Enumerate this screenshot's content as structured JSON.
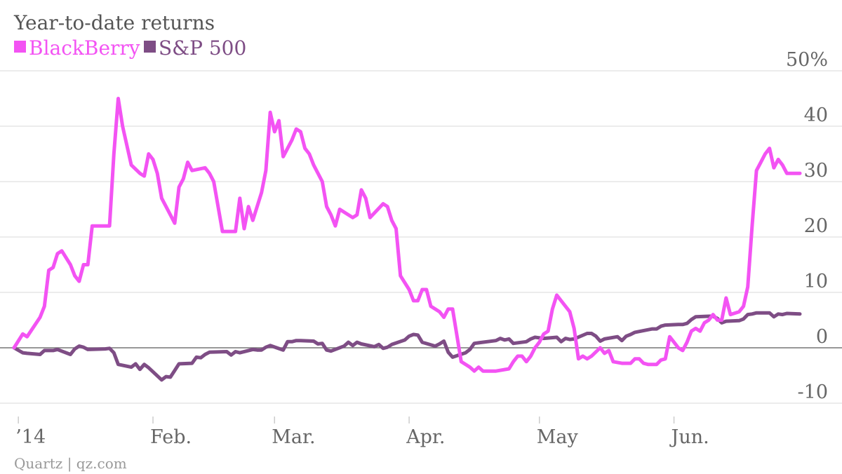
{
  "chart_data": {
    "type": "line",
    "title": "Year-to-date returns",
    "source": "Quartz | qz.com",
    "legend_position": "top-left",
    "grid": true,
    "ylim": [
      -10,
      50
    ],
    "y_ticks": [
      {
        "value": 50,
        "label": "50%"
      },
      {
        "value": 40,
        "label": "40"
      },
      {
        "value": 30,
        "label": "30"
      },
      {
        "value": 20,
        "label": "20"
      },
      {
        "value": 10,
        "label": "10"
      },
      {
        "value": 0,
        "label": "0"
      },
      {
        "value": -10,
        "label": "-10"
      }
    ],
    "x_domain": [
      "2013-12-31",
      "2014-06-30"
    ],
    "x_ticks": [
      {
        "date": "2014-01-01",
        "label": "’14"
      },
      {
        "date": "2014-02-01",
        "label": "Feb."
      },
      {
        "date": "2014-03-01",
        "label": "Mar."
      },
      {
        "date": "2014-04-01",
        "label": "Apr."
      },
      {
        "date": "2014-05-01",
        "label": "May"
      },
      {
        "date": "2014-06-01",
        "label": "Jun."
      }
    ],
    "series": [
      {
        "name": "BlackBerry",
        "color": "#f353f3",
        "points": [
          [
            "2013-12-31",
            0
          ],
          [
            "2014-01-02",
            2.5
          ],
          [
            "2014-01-03",
            2
          ],
          [
            "2014-01-06",
            5.5
          ],
          [
            "2014-01-07",
            7.5
          ],
          [
            "2014-01-08",
            14
          ],
          [
            "2014-01-09",
            14.5
          ],
          [
            "2014-01-10",
            17
          ],
          [
            "2014-01-11",
            17.5
          ],
          [
            "2014-01-13",
            15
          ],
          [
            "2014-01-14",
            13
          ],
          [
            "2014-01-15",
            12
          ],
          [
            "2014-01-16",
            15
          ],
          [
            "2014-01-17",
            15
          ],
          [
            "2014-01-18",
            22
          ],
          [
            "2014-01-21",
            22
          ],
          [
            "2014-01-22",
            22
          ],
          [
            "2014-01-23",
            35
          ],
          [
            "2014-01-24",
            45
          ],
          [
            "2014-01-25",
            40
          ],
          [
            "2014-01-27",
            33
          ],
          [
            "2014-01-29",
            31.5
          ],
          [
            "2014-01-30",
            31
          ],
          [
            "2014-01-31",
            35
          ],
          [
            "2014-02-01",
            34
          ],
          [
            "2014-02-02",
            31.5
          ],
          [
            "2014-02-03",
            27
          ],
          [
            "2014-02-05",
            24
          ],
          [
            "2014-02-06",
            22.5
          ],
          [
            "2014-02-07",
            29
          ],
          [
            "2014-02-08",
            30.5
          ],
          [
            "2014-02-09",
            33.5
          ],
          [
            "2014-02-10",
            32
          ],
          [
            "2014-02-13",
            32.5
          ],
          [
            "2014-02-14",
            31.5
          ],
          [
            "2014-02-15",
            30
          ],
          [
            "2014-02-17",
            21
          ],
          [
            "2014-02-20",
            21
          ],
          [
            "2014-02-21",
            27
          ],
          [
            "2014-02-22",
            21.5
          ],
          [
            "2014-02-23",
            25.5
          ],
          [
            "2014-02-24",
            23
          ],
          [
            "2014-02-26",
            28
          ],
          [
            "2014-02-27",
            32
          ],
          [
            "2014-02-28",
            42.5
          ],
          [
            "2014-03-01",
            39
          ],
          [
            "2014-03-02",
            41
          ],
          [
            "2014-03-03",
            34.5
          ],
          [
            "2014-03-05",
            37.5
          ],
          [
            "2014-03-06",
            39.5
          ],
          [
            "2014-03-07",
            39
          ],
          [
            "2014-03-08",
            36
          ],
          [
            "2014-03-09",
            35
          ],
          [
            "2014-03-10",
            33
          ],
          [
            "2014-03-12",
            30
          ],
          [
            "2014-03-13",
            25.5
          ],
          [
            "2014-03-14",
            24
          ],
          [
            "2014-03-15",
            22
          ],
          [
            "2014-03-16",
            25
          ],
          [
            "2014-03-19",
            23.5
          ],
          [
            "2014-03-20",
            24
          ],
          [
            "2014-03-21",
            28.5
          ],
          [
            "2014-03-22",
            27
          ],
          [
            "2014-03-23",
            23.5
          ],
          [
            "2014-03-26",
            26
          ],
          [
            "2014-03-27",
            25.5
          ],
          [
            "2014-03-28",
            23
          ],
          [
            "2014-03-29",
            21.5
          ],
          [
            "2014-03-30",
            13
          ],
          [
            "2014-04-01",
            10.5
          ],
          [
            "2014-04-02",
            8.5
          ],
          [
            "2014-04-03",
            8.5
          ],
          [
            "2014-04-04",
            10.5
          ],
          [
            "2014-04-05",
            10.5
          ],
          [
            "2014-04-06",
            7.5
          ],
          [
            "2014-04-08",
            6.5
          ],
          [
            "2014-04-09",
            5.5
          ],
          [
            "2014-04-10",
            7
          ],
          [
            "2014-04-11",
            7
          ],
          [
            "2014-04-13",
            -2.5
          ],
          [
            "2014-04-15",
            -3.5
          ],
          [
            "2014-04-16",
            -4.2
          ],
          [
            "2014-04-17",
            -3.5
          ],
          [
            "2014-04-18",
            -4.2
          ],
          [
            "2014-04-21",
            -4.2
          ],
          [
            "2014-04-24",
            -3.8
          ],
          [
            "2014-04-25",
            -2.5
          ],
          [
            "2014-04-26",
            -1.5
          ],
          [
            "2014-04-27",
            -1.5
          ],
          [
            "2014-04-28",
            -2.5
          ],
          [
            "2014-04-29",
            -1.5
          ],
          [
            "2014-04-30",
            0
          ],
          [
            "2014-05-01",
            1
          ],
          [
            "2014-05-02",
            2.5
          ],
          [
            "2014-05-03",
            3
          ],
          [
            "2014-05-04",
            7
          ],
          [
            "2014-05-05",
            9.5
          ],
          [
            "2014-05-06",
            8.5
          ],
          [
            "2014-05-08",
            6.5
          ],
          [
            "2014-05-09",
            3.5
          ],
          [
            "2014-05-10",
            -2
          ],
          [
            "2014-05-11",
            -1.5
          ],
          [
            "2014-05-12",
            -2
          ],
          [
            "2014-05-13",
            -1.5
          ],
          [
            "2014-05-15",
            0
          ],
          [
            "2014-05-16",
            -1
          ],
          [
            "2014-05-17",
            -0.5
          ],
          [
            "2014-05-18",
            -2.5
          ],
          [
            "2014-05-20",
            -2.8
          ],
          [
            "2014-05-22",
            -2.8
          ],
          [
            "2014-05-23",
            -2
          ],
          [
            "2014-05-24",
            -2
          ],
          [
            "2014-05-25",
            -2.8
          ],
          [
            "2014-05-26",
            -3
          ],
          [
            "2014-05-28",
            -3
          ],
          [
            "2014-05-29",
            -2.2
          ],
          [
            "2014-05-30",
            -2
          ],
          [
            "2014-05-31",
            2
          ],
          [
            "2014-06-01",
            1
          ],
          [
            "2014-06-02",
            0
          ],
          [
            "2014-06-03",
            -0.5
          ],
          [
            "2014-06-04",
            1
          ],
          [
            "2014-06-05",
            3
          ],
          [
            "2014-06-06",
            3.5
          ],
          [
            "2014-06-07",
            3
          ],
          [
            "2014-06-08",
            4.5
          ],
          [
            "2014-06-09",
            5
          ],
          [
            "2014-06-10",
            6
          ],
          [
            "2014-06-11",
            5
          ],
          [
            "2014-06-12",
            5
          ],
          [
            "2014-06-13",
            9
          ],
          [
            "2014-06-14",
            6
          ],
          [
            "2014-06-16",
            6.5
          ],
          [
            "2014-06-17",
            7.5
          ],
          [
            "2014-06-18",
            11
          ],
          [
            "2014-06-19",
            22
          ],
          [
            "2014-06-20",
            32
          ],
          [
            "2014-06-21",
            33.5
          ],
          [
            "2014-06-22",
            35
          ],
          [
            "2014-06-23",
            36
          ],
          [
            "2014-06-24",
            32.5
          ],
          [
            "2014-06-25",
            34
          ],
          [
            "2014-06-26",
            33
          ],
          [
            "2014-06-27",
            31.5
          ],
          [
            "2014-06-30",
            31.5
          ]
        ]
      },
      {
        "name": "S&P 500",
        "color": "#7e4d85",
        "points": [
          [
            "2013-12-31",
            0
          ],
          [
            "2014-01-02",
            -0.9
          ],
          [
            "2014-01-03",
            -1
          ],
          [
            "2014-01-06",
            -1.2
          ],
          [
            "2014-01-07",
            -0.5
          ],
          [
            "2014-01-08",
            -0.5
          ],
          [
            "2014-01-09",
            -0.5
          ],
          [
            "2014-01-10",
            -0.3
          ],
          [
            "2014-01-13",
            -1.2
          ],
          [
            "2014-01-14",
            -0.2
          ],
          [
            "2014-01-15",
            0.3
          ],
          [
            "2014-01-16",
            0.1
          ],
          [
            "2014-01-17",
            -0.3
          ],
          [
            "2014-01-21",
            -0.2
          ],
          [
            "2014-01-22",
            -0.1
          ],
          [
            "2014-01-23",
            -0.9
          ],
          [
            "2014-01-24",
            -3
          ],
          [
            "2014-01-27",
            -3.5
          ],
          [
            "2014-01-28",
            -2.9
          ],
          [
            "2014-01-29",
            -3.9
          ],
          [
            "2014-01-30",
            -3
          ],
          [
            "2014-01-31",
            -3.6
          ],
          [
            "2014-02-03",
            -5.8
          ],
          [
            "2014-02-04",
            -5.2
          ],
          [
            "2014-02-05",
            -5.3
          ],
          [
            "2014-02-06",
            -4.1
          ],
          [
            "2014-02-07",
            -2.9
          ],
          [
            "2014-02-10",
            -2.8
          ],
          [
            "2014-02-11",
            -1.7
          ],
          [
            "2014-02-12",
            -1.8
          ],
          [
            "2014-02-13",
            -1.2
          ],
          [
            "2014-02-14",
            -0.8
          ],
          [
            "2014-02-18",
            -0.7
          ],
          [
            "2014-02-19",
            -1.3
          ],
          [
            "2014-02-20",
            -0.7
          ],
          [
            "2014-02-21",
            -0.9
          ],
          [
            "2014-02-24",
            -0.3
          ],
          [
            "2014-02-25",
            -0.4
          ],
          [
            "2014-02-26",
            -0.4
          ],
          [
            "2014-02-27",
            0.1
          ],
          [
            "2014-02-28",
            0.4
          ],
          [
            "2014-03-03",
            -0.4
          ],
          [
            "2014-03-04",
            1.1
          ],
          [
            "2014-03-05",
            1.1
          ],
          [
            "2014-03-06",
            1.3
          ],
          [
            "2014-03-07",
            1.3
          ],
          [
            "2014-03-10",
            1.2
          ],
          [
            "2014-03-11",
            0.7
          ],
          [
            "2014-03-12",
            0.8
          ],
          [
            "2014-03-13",
            -0.4
          ],
          [
            "2014-03-14",
            -0.6
          ],
          [
            "2014-03-17",
            0.3
          ],
          [
            "2014-03-18",
            1
          ],
          [
            "2014-03-19",
            0.4
          ],
          [
            "2014-03-20",
            1
          ],
          [
            "2014-03-21",
            0.7
          ],
          [
            "2014-03-24",
            0.2
          ],
          [
            "2014-03-25",
            0.6
          ],
          [
            "2014-03-26",
            -0.1
          ],
          [
            "2014-03-27",
            0.1
          ],
          [
            "2014-03-28",
            0.6
          ],
          [
            "2014-03-31",
            1.4
          ],
          [
            "2014-04-01",
            2.1
          ],
          [
            "2014-04-02",
            2.4
          ],
          [
            "2014-04-03",
            2.3
          ],
          [
            "2014-04-04",
            1
          ],
          [
            "2014-04-07",
            0.3
          ],
          [
            "2014-04-08",
            0.7
          ],
          [
            "2014-04-09",
            1.2
          ],
          [
            "2014-04-10",
            -0.8
          ],
          [
            "2014-04-11",
            -1.7
          ],
          [
            "2014-04-14",
            -0.9
          ],
          [
            "2014-04-15",
            -0.3
          ],
          [
            "2014-04-16",
            0.8
          ],
          [
            "2014-04-17",
            0.9
          ],
          [
            "2014-04-21",
            1.3
          ],
          [
            "2014-04-22",
            1.7
          ],
          [
            "2014-04-23",
            1.4
          ],
          [
            "2014-04-24",
            1.6
          ],
          [
            "2014-04-25",
            0.8
          ],
          [
            "2014-04-28",
            1.1
          ],
          [
            "2014-04-29",
            1.6
          ],
          [
            "2014-04-30",
            1.9
          ],
          [
            "2014-05-01",
            1.8
          ],
          [
            "2014-05-02",
            1.7
          ],
          [
            "2014-05-05",
            1.9
          ],
          [
            "2014-05-06",
            1.1
          ],
          [
            "2014-05-07",
            1.7
          ],
          [
            "2014-05-08",
            1.5
          ],
          [
            "2014-05-09",
            1.6
          ],
          [
            "2014-05-12",
            2.6
          ],
          [
            "2014-05-13",
            2.6
          ],
          [
            "2014-05-14",
            2.1
          ],
          [
            "2014-05-15",
            1.2
          ],
          [
            "2014-05-16",
            1.6
          ],
          [
            "2014-05-19",
            2
          ],
          [
            "2014-05-20",
            1.3
          ],
          [
            "2014-05-21",
            2.1
          ],
          [
            "2014-05-22",
            2.4
          ],
          [
            "2014-05-23",
            2.8
          ],
          [
            "2014-05-27",
            3.4
          ],
          [
            "2014-05-28",
            3.4
          ],
          [
            "2014-05-29",
            3.9
          ],
          [
            "2014-05-30",
            4.1
          ],
          [
            "2014-06-02",
            4.2
          ],
          [
            "2014-06-03",
            4.2
          ],
          [
            "2014-06-04",
            4.4
          ],
          [
            "2014-06-05",
            5.1
          ],
          [
            "2014-06-06",
            5.6
          ],
          [
            "2014-06-09",
            5.7
          ],
          [
            "2014-06-10",
            5.7
          ],
          [
            "2014-06-11",
            5.3
          ],
          [
            "2014-06-12",
            4.5
          ],
          [
            "2014-06-13",
            4.8
          ],
          [
            "2014-06-16",
            4.9
          ],
          [
            "2014-06-17",
            5.2
          ],
          [
            "2014-06-18",
            6
          ],
          [
            "2014-06-19",
            6.1
          ],
          [
            "2014-06-20",
            6.3
          ],
          [
            "2014-06-23",
            6.3
          ],
          [
            "2014-06-24",
            5.6
          ],
          [
            "2014-06-25",
            6.1
          ],
          [
            "2014-06-26",
            6
          ],
          [
            "2014-06-27",
            6.2
          ],
          [
            "2014-06-30",
            6.1
          ]
        ]
      }
    ]
  }
}
